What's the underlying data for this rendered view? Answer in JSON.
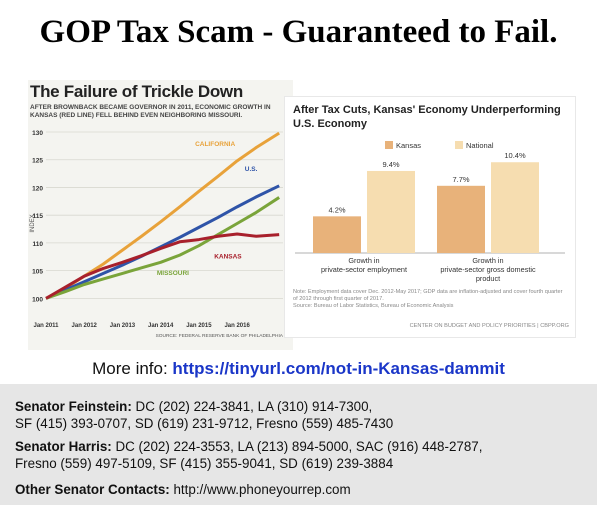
{
  "header": {
    "title": "GOP Tax Scam - Guaranteed to Fail."
  },
  "left_chart": {
    "title": "The Failure of Trickle Down",
    "subtitle": "AFTER BROWNBACK BECAME GOVERNOR IN 2011, ECONOMIC GROWTH IN KANSAS (RED LINE) FELL BEHIND EVEN NEIGHBORING MISSOURI.",
    "source": "SOURCE: FEDERAL RESERVE BANK OF PHILADELPHIA"
  },
  "right_chart": {
    "title": "After Tax Cuts, Kansas' Economy Underperforming U.S. Economy",
    "note": "Note: Employment data cover Dec. 2012-May 2017; GDP data are inflation-adjusted and cover fourth quarter of 2012 through first quarter of 2017.",
    "source": "Source: Bureau of Labor Statistics, Bureau of Economic Analysis",
    "credit": "CENTER ON BUDGET AND POLICY PRIORITIES | CBPP.ORG"
  },
  "chart_data": [
    {
      "type": "line",
      "title": "The Failure of Trickle Down",
      "ylabel": "INDEX",
      "x_ticks": [
        "Jan 2011",
        "Jan 2012",
        "Jan 2013",
        "Jan 2014",
        "Jan 2015",
        "Jan 2016"
      ],
      "y_ticks": [
        100,
        105,
        110,
        115,
        120,
        125,
        130
      ],
      "xlim": [
        2011,
        2017.2
      ],
      "ylim": [
        97,
        130
      ],
      "grid": true,
      "series": [
        {
          "name": "CALIFORNIA",
          "color": "#e8a23a",
          "x": [
            2011,
            2011.5,
            2012,
            2012.5,
            2013,
            2013.5,
            2014,
            2014.5,
            2015,
            2015.5,
            2016,
            2016.5,
            2017.1
          ],
          "y": [
            100,
            101.8,
            104,
            106.2,
            108.7,
            111.2,
            113.8,
            116.5,
            119.3,
            122,
            124.8,
            127.2,
            129.8
          ]
        },
        {
          "name": "U.S.",
          "color": "#2f54a8",
          "x": [
            2011,
            2011.5,
            2012,
            2012.5,
            2013,
            2013.5,
            2014,
            2014.5,
            2015,
            2015.5,
            2016,
            2016.5,
            2017.1
          ],
          "y": [
            100,
            101.5,
            103,
            104.5,
            106,
            107.6,
            109.3,
            111,
            112.8,
            114.6,
            116.5,
            118.3,
            120.3
          ]
        },
        {
          "name": "MISSOURI",
          "color": "#7aa43a",
          "x": [
            2011,
            2011.5,
            2012,
            2012.5,
            2013,
            2013.5,
            2014,
            2014.5,
            2015,
            2015.5,
            2016,
            2016.5,
            2017.1
          ],
          "y": [
            100,
            101.2,
            102.5,
            103.5,
            104.5,
            105.5,
            106.5,
            107.8,
            109.5,
            111.5,
            113.5,
            115.5,
            118.2
          ]
        },
        {
          "name": "KANSAS",
          "color": "#a8202c",
          "x": [
            2011,
            2011.5,
            2012,
            2012.5,
            2013,
            2013.5,
            2014,
            2014.5,
            2015,
            2015.5,
            2016,
            2016.5,
            2017.1
          ],
          "y": [
            100,
            102,
            104,
            105.4,
            106.5,
            107.7,
            109,
            110.2,
            110.6,
            111.2,
            111.6,
            111.2,
            111.5
          ]
        }
      ]
    },
    {
      "type": "bar",
      "title": "After Tax Cuts, Kansas' Economy Underperforming U.S. Economy",
      "categories": [
        "Growth in private-sector employment",
        "Growth in private-sector gross domestic product"
      ],
      "series": [
        {
          "name": "Kansas",
          "color": "#e8b27a",
          "values": [
            4.2,
            7.7
          ],
          "labels": [
            "4.2%",
            "7.7%"
          ]
        },
        {
          "name": "National",
          "color": "#f6ddb0",
          "values": [
            9.4,
            10.4
          ],
          "labels": [
            "9.4%",
            "10.4%"
          ]
        }
      ],
      "ylim": [
        0,
        11
      ],
      "legend": "top"
    }
  ],
  "more_info": {
    "prefix": "More info: ",
    "link": "https://tinyurl.com/not-in-Kansas-dammit"
  },
  "contacts": {
    "feinstein_label": "Senator Feinstein:",
    "feinstein_line1": " DC (202) 224-3841, LA (310) 914-7300,",
    "feinstein_line2": "SF (415) 393-0707, SD (619) 231-9712, Fresno (559) 485-7430",
    "harris_label": "Senator Harris:",
    "harris_line1": " DC (202) 224-3553, LA (213) 894-5000, SAC (916) 448-2787,",
    "harris_line2": "Fresno (559) 497-5109,  SF (415) 355-9041, SD (619) 239-3884",
    "other_label": "Other Senator Contacts:",
    "other_value": " http://www.phoneyourrep.com"
  }
}
